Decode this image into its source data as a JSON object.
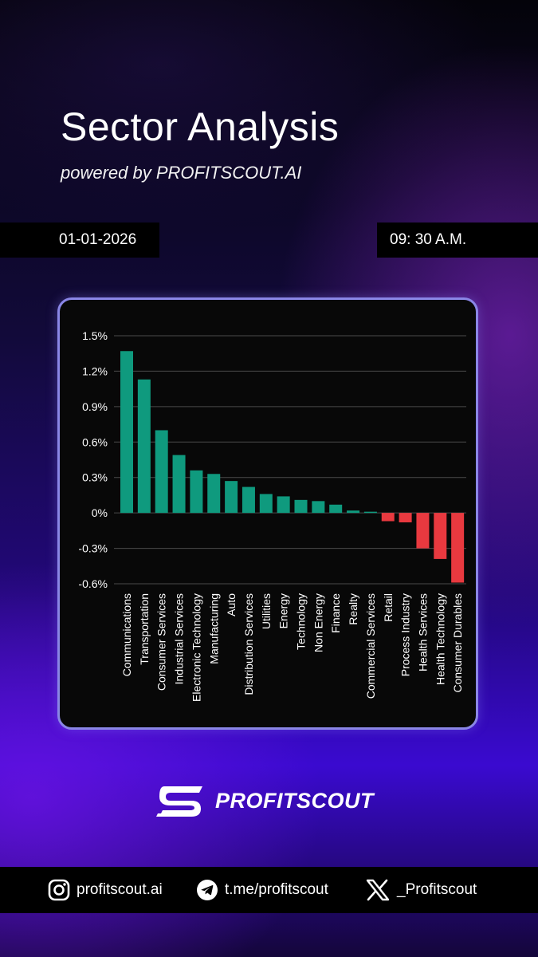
{
  "header": {
    "title": "Sector Analysis",
    "subtitle": "powered by PROFITSCOUT.AI"
  },
  "date": "01-01-2026",
  "time": "09: 30 A.M.",
  "brand": {
    "name": "PROFITSCOUT"
  },
  "socials": [
    {
      "icon": "instagram-icon",
      "label": "profitscout.ai"
    },
    {
      "icon": "telegram-icon",
      "label": "t.me/profitscout"
    },
    {
      "icon": "x-icon",
      "label": "_Profitscout"
    }
  ],
  "colors": {
    "positive": "#0f9a7e",
    "negative": "#e8393f",
    "border": "#8a86e6"
  },
  "chart_data": {
    "type": "bar",
    "categories": [
      "Communications",
      "Transportation",
      "Consumer Services",
      "Industrial Services",
      "Electronic Technology",
      "Manufacturing",
      "Auto",
      "Distribution Services",
      "Utilities",
      "Energy",
      "Technology",
      "Non Energy",
      "Finance",
      "Realty",
      "Commercial Services",
      "Retail",
      "Process Industry",
      "Health Services",
      "Health Technology",
      "Consumer Durables"
    ],
    "values": [
      1.37,
      1.13,
      0.7,
      0.49,
      0.36,
      0.33,
      0.27,
      0.22,
      0.16,
      0.14,
      0.11,
      0.1,
      0.07,
      0.02,
      0.01,
      -0.07,
      -0.08,
      -0.3,
      -0.39,
      -0.59
    ],
    "yticks": [
      "1.5%",
      "1.2%",
      "0.9%",
      "0.6%",
      "0.3%",
      "0%",
      "-0.3%",
      "-0.6%"
    ],
    "ytick_values": [
      1.5,
      1.2,
      0.9,
      0.6,
      0.3,
      0,
      -0.3,
      -0.6
    ],
    "ylim": [
      -0.6,
      1.5
    ],
    "grid": true
  }
}
